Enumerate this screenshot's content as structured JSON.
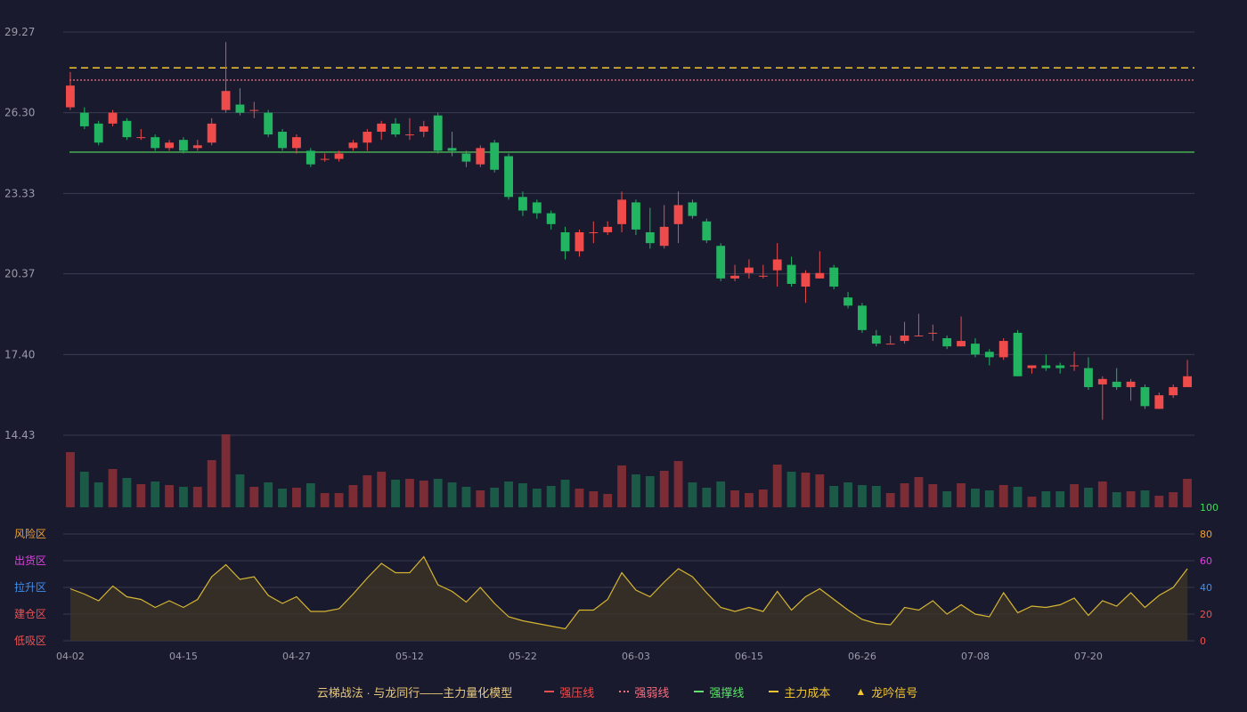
{
  "colors": {
    "up": "#ef4b4b",
    "down": "#22b461",
    "up_vol": "#7b2c35",
    "down_vol": "#1b5a47",
    "resist_line": "#ef4b4b",
    "weak_line": "#f07080",
    "support_line": "#4dbb55",
    "cost_line": "#f3c62d",
    "osc_line": "#d6b532",
    "grid": "#3a3b50",
    "axis_text": "#9a9aa8"
  },
  "chart_data": {
    "type": "candlestick",
    "price_axis": {
      "ticks": [
        "29.27",
        "26.30",
        "23.33",
        "20.37",
        "17.40",
        "14.43"
      ],
      "ylim": [
        14.43,
        29.27
      ]
    },
    "oscillator_axis": {
      "ticks": [
        "100",
        "80",
        "60",
        "40",
        "20",
        "0"
      ],
      "ylim": [
        0,
        100
      ]
    },
    "oscillator_zones": [
      "风险区",
      "出货区",
      "拉升区",
      "建仓区",
      "低吸区"
    ],
    "x_ticks": [
      "04-02",
      "04-15",
      "04-27",
      "05-12",
      "05-22",
      "06-03",
      "06-15",
      "06-26",
      "07-08",
      "07-20"
    ],
    "x_tick_index": [
      0,
      8,
      16,
      24,
      32,
      40,
      48,
      56,
      64,
      72
    ],
    "levels": {
      "main_cost": 27.95,
      "weak": 27.5,
      "support": 24.85
    },
    "candles": [
      [
        26.5,
        27.3,
        26.4,
        27.8
      ],
      [
        26.3,
        25.8,
        25.7,
        26.5
      ],
      [
        25.9,
        25.2,
        25.1,
        26.0
      ],
      [
        25.9,
        26.3,
        25.8,
        26.4
      ],
      [
        26.0,
        25.4,
        25.3,
        26.1
      ],
      [
        25.4,
        25.4,
        25.3,
        25.7
      ],
      [
        25.4,
        25.0,
        24.9,
        25.5
      ],
      [
        25.0,
        25.2,
        24.9,
        25.3
      ],
      [
        25.3,
        24.9,
        24.8,
        25.4
      ],
      [
        25.0,
        25.1,
        24.9,
        25.3
      ],
      [
        25.2,
        25.9,
        25.1,
        26.1
      ],
      [
        26.4,
        27.1,
        26.3,
        28.9
      ],
      [
        26.6,
        26.3,
        26.2,
        27.2
      ],
      [
        26.4,
        26.4,
        26.1,
        26.7
      ],
      [
        26.3,
        25.5,
        25.4,
        26.4
      ],
      [
        25.6,
        25.0,
        24.9,
        25.7
      ],
      [
        25.0,
        25.4,
        24.8,
        25.5
      ],
      [
        24.9,
        24.4,
        24.3,
        25.0
      ],
      [
        24.6,
        24.6,
        24.5,
        24.8
      ],
      [
        24.6,
        24.8,
        24.5,
        24.9
      ],
      [
        25.0,
        25.2,
        24.9,
        25.3
      ],
      [
        25.2,
        25.6,
        24.9,
        25.7
      ],
      [
        25.6,
        25.9,
        25.3,
        26.0
      ],
      [
        25.9,
        25.5,
        25.4,
        26.1
      ],
      [
        25.5,
        25.5,
        25.3,
        26.1
      ],
      [
        25.6,
        25.8,
        25.4,
        26.0
      ],
      [
        26.2,
        24.9,
        24.8,
        26.3
      ],
      [
        25.0,
        24.9,
        24.7,
        25.6
      ],
      [
        24.8,
        24.5,
        24.3,
        24.9
      ],
      [
        24.4,
        25.0,
        24.3,
        25.1
      ],
      [
        25.2,
        24.2,
        24.1,
        25.3
      ],
      [
        24.7,
        23.2,
        23.1,
        24.8
      ],
      [
        23.2,
        22.7,
        22.5,
        23.4
      ],
      [
        23.0,
        22.6,
        22.4,
        23.1
      ],
      [
        22.6,
        22.2,
        22.0,
        22.7
      ],
      [
        21.9,
        21.2,
        20.9,
        22.1
      ],
      [
        21.2,
        21.9,
        21.0,
        22.0
      ],
      [
        21.9,
        21.9,
        21.5,
        22.3
      ],
      [
        21.9,
        22.1,
        21.8,
        22.3
      ],
      [
        22.2,
        23.1,
        21.9,
        23.4
      ],
      [
        23.0,
        22.0,
        21.8,
        23.1
      ],
      [
        21.9,
        21.5,
        21.3,
        22.8
      ],
      [
        21.4,
        22.1,
        21.3,
        22.9
      ],
      [
        22.2,
        22.9,
        21.5,
        23.4
      ],
      [
        23.0,
        22.5,
        22.4,
        23.1
      ],
      [
        22.3,
        21.6,
        21.5,
        22.4
      ],
      [
        21.4,
        20.2,
        20.1,
        21.5
      ],
      [
        20.2,
        20.3,
        20.1,
        20.7
      ],
      [
        20.4,
        20.6,
        20.2,
        20.9
      ],
      [
        20.3,
        20.3,
        20.2,
        20.7
      ],
      [
        20.5,
        20.9,
        19.9,
        21.5
      ],
      [
        20.7,
        20.0,
        19.9,
        21.0
      ],
      [
        19.9,
        20.4,
        19.3,
        20.5
      ],
      [
        20.2,
        20.4,
        20.2,
        21.2
      ],
      [
        20.6,
        19.9,
        19.8,
        20.7
      ],
      [
        19.5,
        19.2,
        19.1,
        19.7
      ],
      [
        19.2,
        18.3,
        18.2,
        19.3
      ],
      [
        18.1,
        17.8,
        17.7,
        18.3
      ],
      [
        17.8,
        17.8,
        17.8,
        18.1
      ],
      [
        17.9,
        18.1,
        17.8,
        18.6
      ],
      [
        18.1,
        18.1,
        18.1,
        18.9
      ],
      [
        18.2,
        18.2,
        17.9,
        18.5
      ],
      [
        18.0,
        17.7,
        17.6,
        18.1
      ],
      [
        17.7,
        17.9,
        17.7,
        18.8
      ],
      [
        17.8,
        17.4,
        17.3,
        18.0
      ],
      [
        17.5,
        17.3,
        17.0,
        17.6
      ],
      [
        17.3,
        17.9,
        17.2,
        18.0
      ],
      [
        18.2,
        16.6,
        16.6,
        18.3
      ],
      [
        16.9,
        17.0,
        16.7,
        17.0
      ],
      [
        17.0,
        16.9,
        16.8,
        17.4
      ],
      [
        17.0,
        16.9,
        16.7,
        17.1
      ],
      [
        17.0,
        17.0,
        16.8,
        17.5
      ],
      [
        16.9,
        16.2,
        16.1,
        17.3
      ],
      [
        16.3,
        16.5,
        15.0,
        16.6
      ],
      [
        16.4,
        16.2,
        16.1,
        16.9
      ],
      [
        16.2,
        16.4,
        15.7,
        16.5
      ],
      [
        16.2,
        15.5,
        15.4,
        16.3
      ],
      [
        15.4,
        15.9,
        15.4,
        16.0
      ],
      [
        15.9,
        16.2,
        15.8,
        16.3
      ],
      [
        16.2,
        16.6,
        16.2,
        17.2
      ]
    ],
    "volumes": [
      62,
      40,
      28,
      43,
      33,
      26,
      29,
      25,
      23,
      23,
      53,
      82,
      37,
      23,
      28,
      21,
      22,
      27,
      16,
      16,
      25,
      36,
      40,
      31,
      32,
      30,
      32,
      28,
      23,
      19,
      22,
      29,
      27,
      21,
      24,
      31,
      21,
      18,
      15,
      47,
      37,
      35,
      41,
      52,
      28,
      22,
      29,
      19,
      16,
      20,
      48,
      40,
      39,
      37,
      24,
      28,
      25,
      24,
      16,
      27,
      34,
      26,
      18,
      27,
      21,
      19,
      25,
      23,
      12,
      18,
      18,
      26,
      22,
      29,
      17,
      18,
      19,
      13,
      17,
      32
    ],
    "oscillator": [
      39,
      35,
      30,
      41,
      33,
      31,
      25,
      30,
      25,
      31,
      48,
      57,
      46,
      48,
      34,
      28,
      33,
      22,
      22,
      24,
      35,
      47,
      58,
      51,
      51,
      63,
      42,
      37,
      29,
      40,
      28,
      18,
      15,
      13,
      11,
      9,
      23,
      23,
      31,
      51,
      38,
      33,
      44,
      54,
      48,
      36,
      25,
      22,
      25,
      22,
      37,
      23,
      33,
      39,
      31,
      23,
      16,
      13,
      12,
      25,
      23,
      30,
      20,
      27,
      20,
      18,
      36,
      21,
      26,
      25,
      27,
      32,
      19,
      30,
      26,
      36,
      25,
      34,
      40,
      54
    ]
  },
  "legend": {
    "caption": "云梯战法 · 与龙同行——主力量化模型",
    "items": [
      {
        "label": "强压线",
        "type": "solid",
        "color": "#ef4b4b"
      },
      {
        "label": "强弱线",
        "type": "dotted",
        "color": "#f07080"
      },
      {
        "label": "强撑线",
        "type": "solid",
        "color": "#5de36a"
      },
      {
        "label": "主力成本",
        "type": "dashed",
        "color": "#f3c62d"
      },
      {
        "label": "龙吟信号",
        "type": "triangle",
        "color": "#f3c62d"
      }
    ]
  }
}
